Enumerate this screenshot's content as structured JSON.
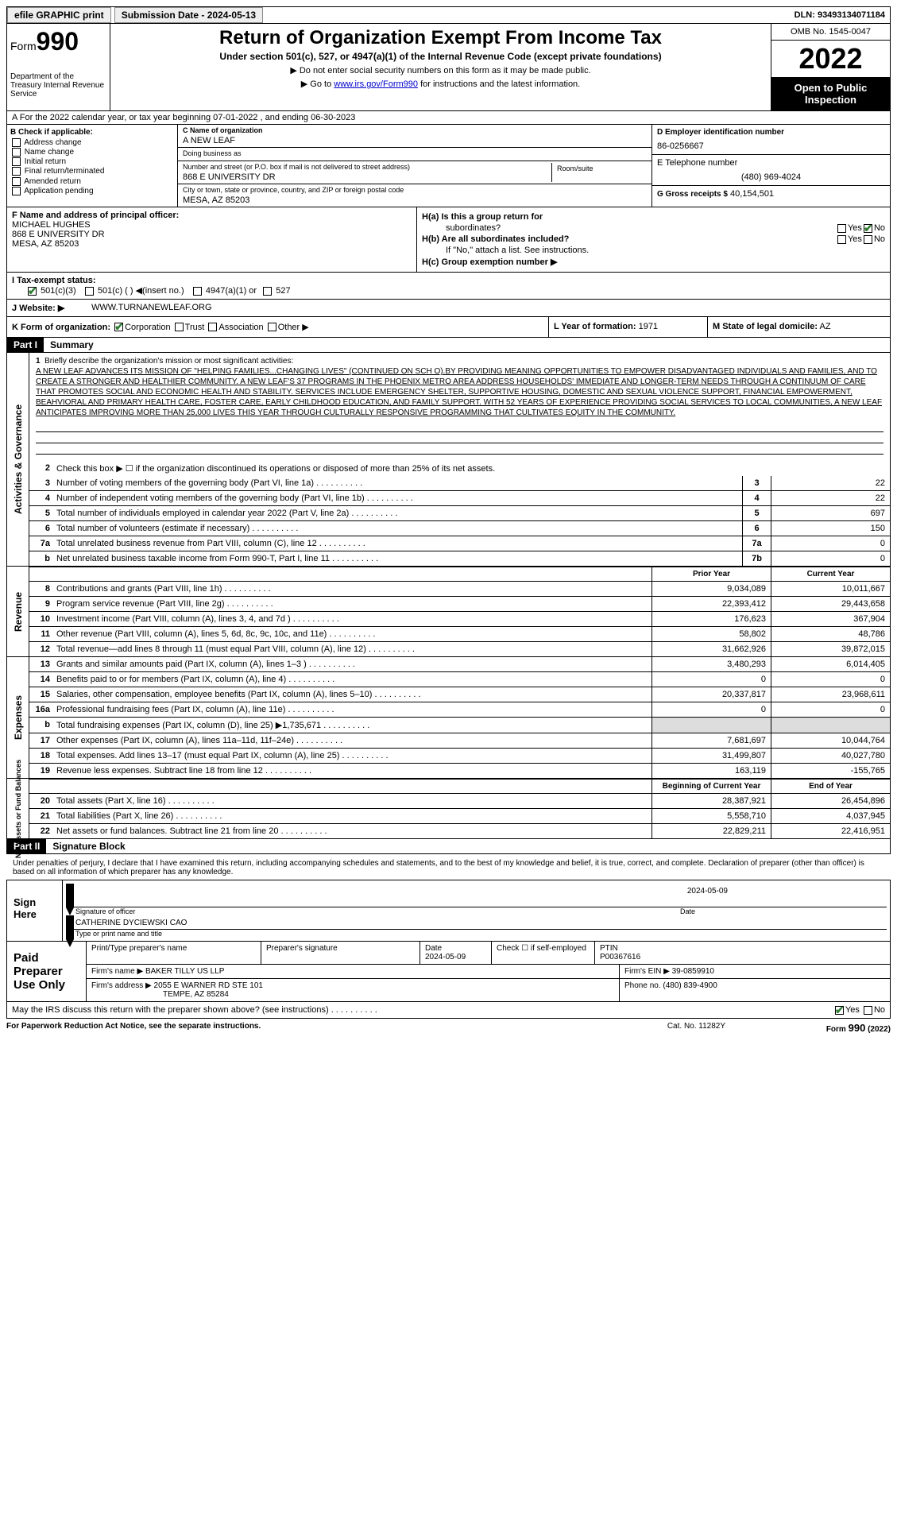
{
  "topbar": {
    "efile": "efile GRAPHIC print",
    "submission_label": "Submission Date - 2024-05-13",
    "dln": "DLN: 93493134071184"
  },
  "header": {
    "form_prefix": "Form",
    "form_num": "990",
    "dept": "Department of the Treasury Internal Revenue Service",
    "title": "Return of Organization Exempt From Income Tax",
    "subtitle": "Under section 501(c), 527, or 4947(a)(1) of the Internal Revenue Code (except private foundations)",
    "note1": "▶ Do not enter social security numbers on this form as it may be made public.",
    "note2_prefix": "▶ Go to ",
    "note2_link": "www.irs.gov/Form990",
    "note2_suffix": " for instructions and the latest information.",
    "omb": "OMB No. 1545-0047",
    "year": "2022",
    "inspect": "Open to Public Inspection"
  },
  "row_a": "A For the 2022 calendar year, or tax year beginning 07-01-2022   , and ending 06-30-2023",
  "col_b": {
    "label": "B Check if applicable:",
    "opts": [
      "Address change",
      "Name change",
      "Initial return",
      "Final return/terminated",
      "Amended return",
      "Application pending"
    ]
  },
  "col_c": {
    "name_lab": "C Name of organization",
    "name": "A NEW LEAF",
    "dba_lab": "Doing business as",
    "dba": "",
    "street_lab": "Number and street (or P.O. box if mail is not delivered to street address)",
    "street": "868 E UNIVERSITY DR",
    "room_lab": "Room/suite",
    "city_lab": "City or town, state or province, country, and ZIP or foreign postal code",
    "city": "MESA, AZ  85203"
  },
  "col_d": {
    "ein_lab": "D Employer identification number",
    "ein": "86-0256667",
    "tel_lab": "E Telephone number",
    "tel": "(480) 969-4024",
    "gross_lab": "G Gross receipts $",
    "gross": "40,154,501"
  },
  "row_f": {
    "lab": "F  Name and address of principal officer:",
    "name": "MICHAEL HUGHES",
    "addr1": "868 E UNIVERSITY DR",
    "addr2": "MESA, AZ  85203"
  },
  "row_h": {
    "ha": "H(a)  Is this a group return for",
    "ha2": "subordinates?",
    "hb": "H(b)  Are all subordinates included?",
    "hb_note": "If \"No,\" attach a list. See instructions.",
    "hc": "H(c)  Group exemption number ▶"
  },
  "row_i": {
    "lab": "I    Tax-exempt status:",
    "o1": "501(c)(3)",
    "o2": "501(c) (  ) ◀(insert no.)",
    "o3": "4947(a)(1) or",
    "o4": "527"
  },
  "row_j": {
    "lab": "J   Website: ▶",
    "val": "WWW.TURNANEWLEAF.ORG"
  },
  "row_k": {
    "lab": "K Form of organization:",
    "o1": "Corporation",
    "o2": "Trust",
    "o3": "Association",
    "o4": "Other ▶",
    "l_lab": "L Year of formation:",
    "l_val": "1971",
    "m_lab": "M State of legal domicile:",
    "m_val": "AZ"
  },
  "part1": {
    "hdr": "Part I",
    "title": "Summary",
    "side1": "Activities & Governance",
    "side2": "Revenue",
    "side3": "Expenses",
    "side4": "Net Assets or Fund Balances",
    "q1_lab": "Briefly describe the organization's mission or most significant activities:",
    "q1_text": "A NEW LEAF ADVANCES ITS MISSION OF \"HELPING FAMILIES...CHANGING LIVES\" (CONTINUED ON SCH O).BY PROVIDING MEANING OPPORTUNITIES TO EMPOWER DISADVANTAGED INDIVIDUALS AND FAMILIES, AND TO CREATE A STRONGER AND HEALTHIER COMMUNITY. A NEW LEAF'S 37 PROGRAMS IN THE PHOENIX METRO AREA ADDRESS HOUSEHOLDS' IMMEDIATE AND LONGER-TERM NEEDS THROUGH A CONTINUUM OF CARE THAT PROMOTES SOCIAL AND ECONOMIC HEALTH AND STABILITY. SERVICES INCLUDE EMERGENCY SHELTER, SUPPORTIVE HOUSING, DOMESTIC AND SEXUAL VIOLENCE SUPPORT, FINANCIAL EMPOWERMENT, BEAHVIORAL AND PRIMARY HEALTH CARE, FOSTER CARE, EARLY CHILDHOOD EDUCATION, AND FAMILY SUPPORT. WITH 52 YEARS OF EXPERIENCE PROVIDING SOCIAL SERVICES TO LOCAL COMMUNITIES, A NEW LEAF ANTICIPATES IMPROVING MORE THAN 25,000 LIVES THIS YEAR THROUGH CULTURALLY RESPONSIVE PROGRAMMING THAT CULTIVATES EQUITY IN THE COMMUNITY.",
    "q2": "Check this box ▶ ☐ if the organization discontinued its operations or disposed of more than 25% of its net assets.",
    "lines_gov": [
      {
        "n": "3",
        "t": "Number of voting members of the governing body (Part VI, line 1a)",
        "b": "3",
        "v": "22"
      },
      {
        "n": "4",
        "t": "Number of independent voting members of the governing body (Part VI, line 1b)",
        "b": "4",
        "v": "22"
      },
      {
        "n": "5",
        "t": "Total number of individuals employed in calendar year 2022 (Part V, line 2a)",
        "b": "5",
        "v": "697"
      },
      {
        "n": "6",
        "t": "Total number of volunteers (estimate if necessary)",
        "b": "6",
        "v": "150"
      },
      {
        "n": "7a",
        "t": "Total unrelated business revenue from Part VIII, column (C), line 12",
        "b": "7a",
        "v": "0"
      },
      {
        "n": "b",
        "t": "Net unrelated business taxable income from Form 990-T, Part I, line 11",
        "b": "7b",
        "v": "0"
      }
    ],
    "py_hdr": "Prior Year",
    "cy_hdr": "Current Year",
    "lines_rev": [
      {
        "n": "8",
        "t": "Contributions and grants (Part VIII, line 1h)",
        "py": "9,034,089",
        "cy": "10,011,667"
      },
      {
        "n": "9",
        "t": "Program service revenue (Part VIII, line 2g)",
        "py": "22,393,412",
        "cy": "29,443,658"
      },
      {
        "n": "10",
        "t": "Investment income (Part VIII, column (A), lines 3, 4, and 7d )",
        "py": "176,623",
        "cy": "367,904"
      },
      {
        "n": "11",
        "t": "Other revenue (Part VIII, column (A), lines 5, 6d, 8c, 9c, 10c, and 11e)",
        "py": "58,802",
        "cy": "48,786"
      },
      {
        "n": "12",
        "t": "Total revenue—add lines 8 through 11 (must equal Part VIII, column (A), line 12)",
        "py": "31,662,926",
        "cy": "39,872,015"
      }
    ],
    "lines_exp": [
      {
        "n": "13",
        "t": "Grants and similar amounts paid (Part IX, column (A), lines 1–3 )",
        "py": "3,480,293",
        "cy": "6,014,405"
      },
      {
        "n": "14",
        "t": "Benefits paid to or for members (Part IX, column (A), line 4)",
        "py": "0",
        "cy": "0"
      },
      {
        "n": "15",
        "t": "Salaries, other compensation, employee benefits (Part IX, column (A), lines 5–10)",
        "py": "20,337,817",
        "cy": "23,968,611"
      },
      {
        "n": "16a",
        "t": "Professional fundraising fees (Part IX, column (A), line 11e)",
        "py": "0",
        "cy": "0"
      },
      {
        "n": "b",
        "t": "Total fundraising expenses (Part IX, column (D), line 25) ▶1,735,671",
        "py": "",
        "cy": "",
        "shade": true
      },
      {
        "n": "17",
        "t": "Other expenses (Part IX, column (A), lines 11a–11d, 11f–24e)",
        "py": "7,681,697",
        "cy": "10,044,764"
      },
      {
        "n": "18",
        "t": "Total expenses. Add lines 13–17 (must equal Part IX, column (A), line 25)",
        "py": "31,499,807",
        "cy": "40,027,780"
      },
      {
        "n": "19",
        "t": "Revenue less expenses. Subtract line 18 from line 12",
        "py": "163,119",
        "cy": "-155,765"
      }
    ],
    "boy_hdr": "Beginning of Current Year",
    "eoy_hdr": "End of Year",
    "lines_net": [
      {
        "n": "20",
        "t": "Total assets (Part X, line 16)",
        "py": "28,387,921",
        "cy": "26,454,896"
      },
      {
        "n": "21",
        "t": "Total liabilities (Part X, line 26)",
        "py": "5,558,710",
        "cy": "4,037,945"
      },
      {
        "n": "22",
        "t": "Net assets or fund balances. Subtract line 21 from line 20",
        "py": "22,829,211",
        "cy": "22,416,951"
      }
    ]
  },
  "part2": {
    "hdr": "Part II",
    "title": "Signature Block",
    "decl": "Under penalties of perjury, I declare that I have examined this return, including accompanying schedules and statements, and to the best of my knowledge and belief, it is true, correct, and complete. Declaration of preparer (other than officer) is based on all information of which preparer has any knowledge.",
    "sign_here": "Sign Here",
    "sig_officer_lab": "Signature of officer",
    "sig_date_lab": "Date",
    "sig_date": "2024-05-09",
    "sig_name": "CATHERINE DYCIEWSKI  CAO",
    "sig_name_lab": "Type or print name and title",
    "paid_prep": "Paid Preparer Use Only",
    "prep_name_lab": "Print/Type preparer's name",
    "prep_sig_lab": "Preparer's signature",
    "prep_date_lab": "Date",
    "prep_date": "2024-05-09",
    "self_emp": "Check ☐ if self-employed",
    "ptin_lab": "PTIN",
    "ptin": "P00367616",
    "firm_name_lab": "Firm's name     ▶",
    "firm_name": "BAKER TILLY US LLP",
    "firm_ein_lab": "Firm's EIN ▶",
    "firm_ein": "39-0859910",
    "firm_addr_lab": "Firm's address ▶",
    "firm_addr": "2055 E WARNER RD STE 101",
    "firm_addr2": "TEMPE, AZ  85284",
    "firm_phone_lab": "Phone no.",
    "firm_phone": "(480) 839-4900",
    "discuss": "May the IRS discuss this return with the preparer shown above? (see instructions)",
    "paperwork": "For Paperwork Reduction Act Notice, see the separate instructions.",
    "cat": "Cat. No. 11282Y",
    "form_foot": "Form 990 (2022)"
  }
}
